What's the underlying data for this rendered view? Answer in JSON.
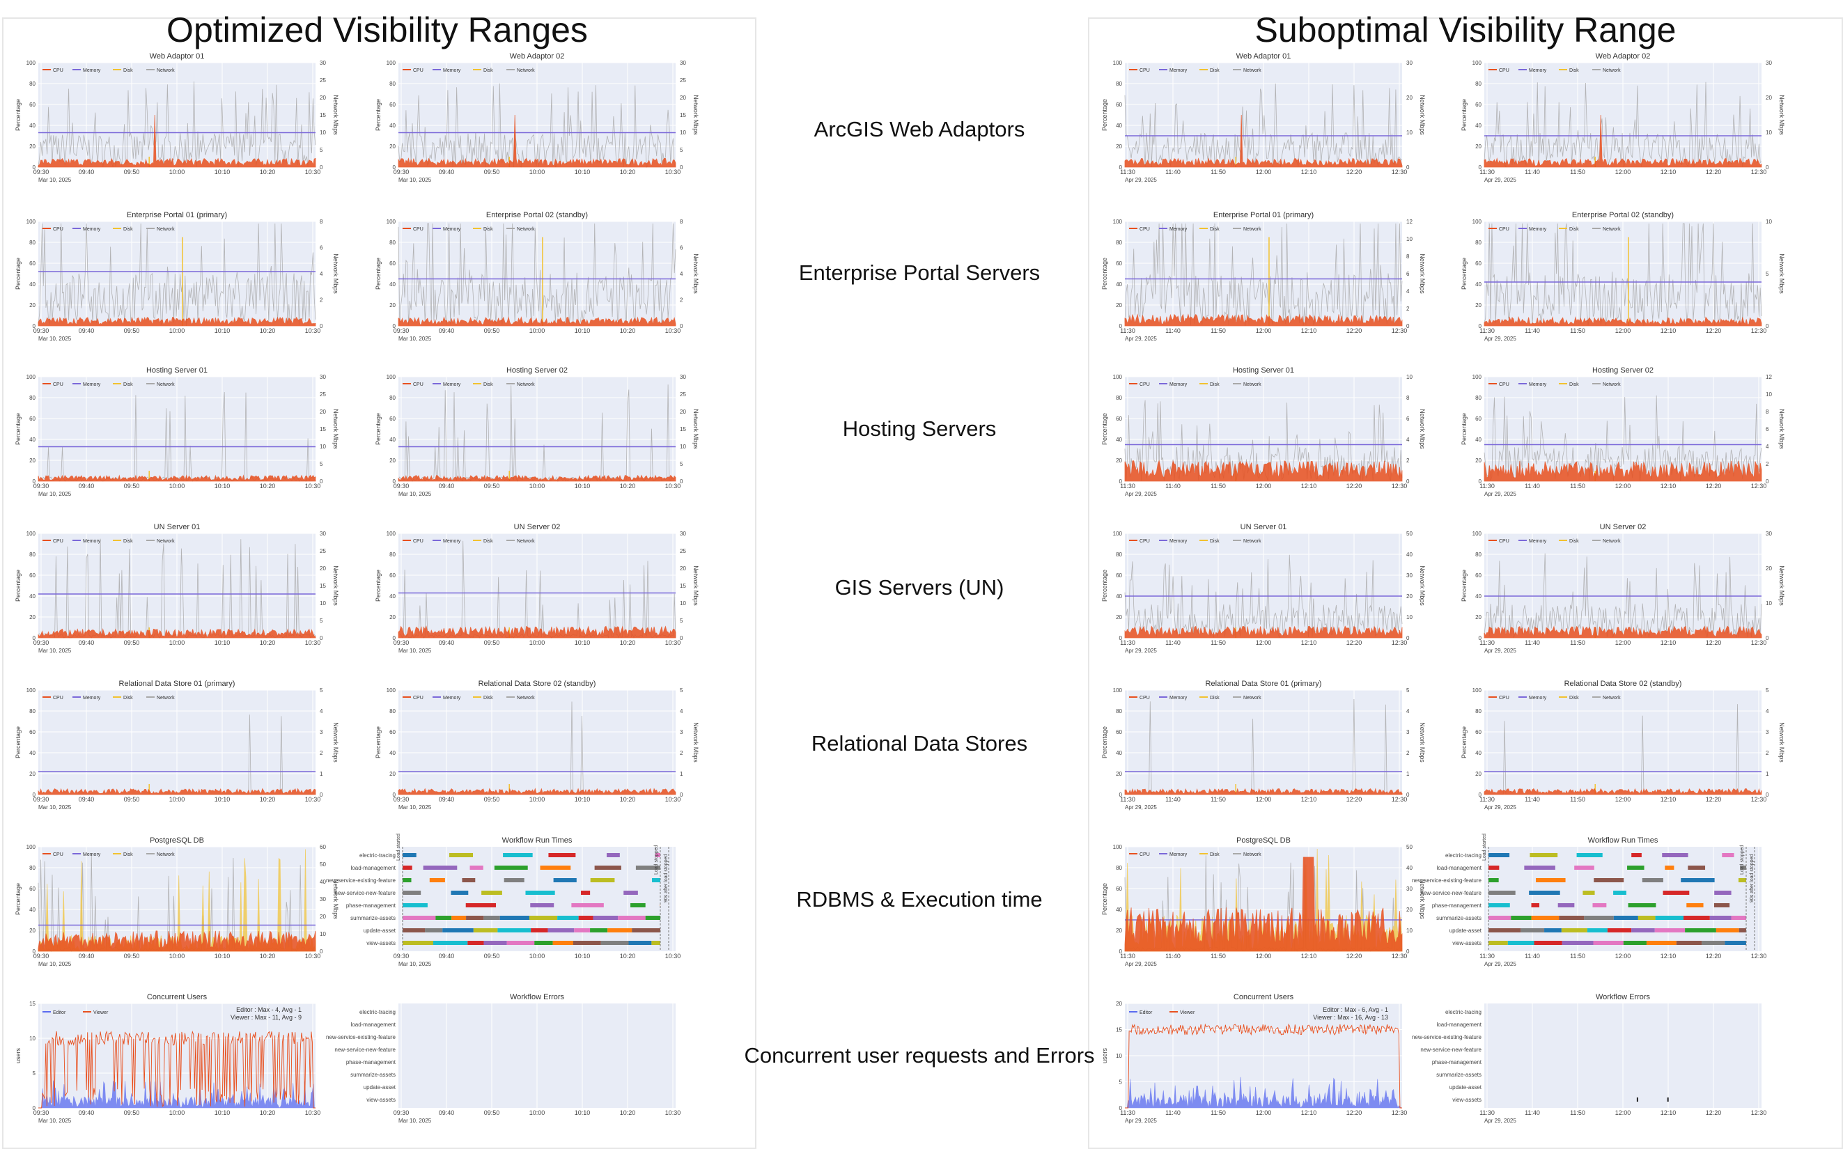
{
  "left_title": "Optimized Visibility Ranges",
  "right_title": "Suboptimal Visibility Range",
  "rows": [
    {
      "label": "ArcGIS Web Adaptors"
    },
    {
      "label": "Enterprise Portal Servers"
    },
    {
      "label": "Hosting Servers"
    },
    {
      "label": "GIS Servers (UN)"
    },
    {
      "label": "Relational Data Stores"
    },
    {
      "label": "RDBMS & Execution time"
    },
    {
      "label": "Concurrent user requests and Errors"
    }
  ],
  "legend_metrics": [
    "CPU",
    "Memory",
    "Disk",
    "Network"
  ],
  "legend_users": [
    "Editor",
    "Viewer"
  ],
  "colors": {
    "cpu": "#e8501f",
    "memory": "#7b68d9",
    "disk": "#f2c230",
    "network": "#a9a9a9",
    "editor": "#e8501f",
    "viewer": "#5a6bf0",
    "bg": "#e8ecf6"
  },
  "axis_labels": {
    "y_left": "Percentage",
    "y_right": "Network Mbps",
    "y_users": "users"
  },
  "workflows": [
    "electric-tracing",
    "load-management",
    "new-service-existing-feature",
    "new-service-new-feature",
    "phase-management",
    "summarize-assets",
    "update-asset",
    "view-assets"
  ],
  "workflow_markers": {
    "load_started": "Load started",
    "load_stopped": "Load stopped",
    "after_stopped": "90s after load stopped"
  },
  "chart_data": [
    {
      "id": "L-r0-c0",
      "type": "line",
      "title": "Web Adaptor 01",
      "xticks": [
        "09:30",
        "09:40",
        "09:50",
        "10:00",
        "10:10",
        "10:20",
        "10:30"
      ],
      "date": "Mar 10, 2025",
      "ylim": [
        0,
        100
      ],
      "yticks": [
        "0",
        "20",
        "40",
        "60",
        "80",
        "100"
      ],
      "y2ticks": [
        "0",
        "5",
        "10",
        "15",
        "20",
        "25",
        "30"
      ],
      "memory_level": 33,
      "cpu_level": 6
    },
    {
      "id": "L-r0-c1",
      "type": "line",
      "title": "Web Adaptor 02",
      "xticks": [
        "09:30",
        "09:40",
        "09:50",
        "10:00",
        "10:10",
        "10:20",
        "10:30"
      ],
      "date": "Mar 10, 2025",
      "ylim": [
        0,
        100
      ],
      "yticks": [
        "0",
        "20",
        "40",
        "60",
        "80",
        "100"
      ],
      "y2ticks": [
        "0",
        "5",
        "10",
        "15",
        "20",
        "25",
        "30"
      ],
      "memory_level": 33,
      "cpu_level": 6
    },
    {
      "id": "L-r1-c0",
      "type": "line",
      "title": "Enterprise Portal 01 (primary)",
      "xticks": [
        "09:30",
        "09:40",
        "09:50",
        "10:00",
        "10:10",
        "10:20",
        "10:30"
      ],
      "date": "Mar 10, 2025",
      "ylim": [
        0,
        100
      ],
      "yticks": [
        "0",
        "20",
        "40",
        "60",
        "80",
        "100"
      ],
      "y2ticks": [
        "0",
        "2",
        "4",
        "6",
        "8"
      ],
      "memory_level": 52,
      "cpu_level": 6
    },
    {
      "id": "L-r1-c1",
      "type": "line",
      "title": "Enterprise Portal 02 (standby)",
      "xticks": [
        "09:30",
        "09:40",
        "09:50",
        "10:00",
        "10:10",
        "10:20",
        "10:30"
      ],
      "date": "Mar 10, 2025",
      "ylim": [
        0,
        100
      ],
      "yticks": [
        "0",
        "20",
        "40",
        "60",
        "80",
        "100"
      ],
      "y2ticks": [
        "0",
        "2",
        "4",
        "6",
        "8"
      ],
      "memory_level": 45,
      "cpu_level": 6
    },
    {
      "id": "L-r2-c0",
      "type": "line",
      "title": "Hosting Server 01",
      "xticks": [
        "09:30",
        "09:40",
        "09:50",
        "10:00",
        "10:10",
        "10:20",
        "10:30"
      ],
      "date": "Mar 10, 2025",
      "ylim": [
        0,
        100
      ],
      "yticks": [
        "0",
        "20",
        "40",
        "60",
        "80",
        "100"
      ],
      "y2ticks": [
        "0",
        "5",
        "10",
        "15",
        "20",
        "25",
        "30"
      ],
      "memory_level": 33,
      "cpu_level": 4
    },
    {
      "id": "L-r2-c1",
      "type": "line",
      "title": "Hosting Server 02",
      "xticks": [
        "09:30",
        "09:40",
        "09:50",
        "10:00",
        "10:10",
        "10:20",
        "10:30"
      ],
      "date": "Mar 10, 2025",
      "ylim": [
        0,
        100
      ],
      "yticks": [
        "0",
        "20",
        "40",
        "60",
        "80",
        "100"
      ],
      "y2ticks": [
        "0",
        "5",
        "10",
        "15",
        "20",
        "25",
        "30"
      ],
      "memory_level": 33,
      "cpu_level": 4
    },
    {
      "id": "L-r3-c0",
      "type": "line",
      "title": "UN Server 01",
      "xticks": [
        "09:30",
        "09:40",
        "09:50",
        "10:00",
        "10:10",
        "10:20",
        "10:30"
      ],
      "date": "Mar 10, 2025",
      "ylim": [
        0,
        100
      ],
      "yticks": [
        "0",
        "20",
        "40",
        "60",
        "80",
        "100"
      ],
      "y2ticks": [
        "0",
        "5",
        "10",
        "15",
        "20",
        "25",
        "30"
      ],
      "memory_level": 42,
      "cpu_level": 6
    },
    {
      "id": "L-r3-c1",
      "type": "line",
      "title": "UN Server 02",
      "xticks": [
        "09:30",
        "09:40",
        "09:50",
        "10:00",
        "10:10",
        "10:20",
        "10:30"
      ],
      "date": "Mar 10, 2025",
      "ylim": [
        0,
        100
      ],
      "yticks": [
        "0",
        "20",
        "40",
        "60",
        "80",
        "100"
      ],
      "y2ticks": [
        "0",
        "5",
        "10",
        "15",
        "20",
        "25",
        "30"
      ],
      "memory_level": 43,
      "cpu_level": 8
    },
    {
      "id": "L-r4-c0",
      "type": "line",
      "title": "Relational Data Store 01 (primary)",
      "xticks": [
        "09:30",
        "09:40",
        "09:50",
        "10:00",
        "10:10",
        "10:20",
        "10:30"
      ],
      "date": "Mar 10, 2025",
      "ylim": [
        0,
        100
      ],
      "yticks": [
        "0",
        "20",
        "40",
        "60",
        "80",
        "100"
      ],
      "y2ticks": [
        "0",
        "1",
        "2",
        "3",
        "4",
        "5"
      ],
      "memory_level": 22,
      "cpu_level": 4
    },
    {
      "id": "L-r4-c1",
      "type": "line",
      "title": "Relational Data Store 02 (standby)",
      "xticks": [
        "09:30",
        "09:40",
        "09:50",
        "10:00",
        "10:10",
        "10:20",
        "10:30"
      ],
      "date": "Mar 10, 2025",
      "ylim": [
        0,
        100
      ],
      "yticks": [
        "0",
        "20",
        "40",
        "60",
        "80",
        "100"
      ],
      "y2ticks": [
        "0",
        "1",
        "2",
        "3",
        "4",
        "5"
      ],
      "memory_level": 22,
      "cpu_level": 4
    },
    {
      "id": "L-r5-c0",
      "type": "area",
      "title": "PostgreSQL DB",
      "xticks": [
        "09:30",
        "09:40",
        "09:50",
        "10:00",
        "10:10",
        "10:20",
        "10:30"
      ],
      "date": "Mar 10, 2025",
      "ylim": [
        0,
        100
      ],
      "yticks": [
        "0",
        "20",
        "40",
        "60",
        "80",
        "100"
      ],
      "y2ticks": [
        "0",
        "10",
        "20",
        "30",
        "40",
        "50",
        "60"
      ],
      "memory_level": 25,
      "cpu_level": 14
    },
    {
      "id": "L-r5-c1",
      "type": "gantt",
      "title": "Workflow Run Times",
      "xticks": [
        "09:30",
        "09:40",
        "09:50",
        "10:00",
        "10:10",
        "10:20",
        "10:30"
      ],
      "date": "Mar 10, 2025"
    },
    {
      "id": "L-r6-c0",
      "type": "line",
      "title": "Concurrent Users",
      "xticks": [
        "09:30",
        "09:40",
        "09:50",
        "10:00",
        "10:10",
        "10:20",
        "10:30"
      ],
      "date": "Mar 10, 2025",
      "ylim": [
        0,
        15
      ],
      "yticks": [
        "0",
        "5",
        "10",
        "15"
      ],
      "annotation": [
        "Editor : Max - 4, Avg - 1",
        "Viewer : Max - 11, Avg - 9"
      ],
      "editor": {
        "max": 4,
        "avg": 1
      },
      "viewer": {
        "max": 11,
        "avg": 9
      }
    },
    {
      "id": "L-r6-c1",
      "type": "gantt",
      "title": "Workflow Errors",
      "xticks": [
        "09:30",
        "09:40",
        "09:50",
        "10:00",
        "10:10",
        "10:20",
        "10:30"
      ],
      "date": "Mar 10, 2025"
    },
    {
      "id": "R-r0-c0",
      "type": "line",
      "title": "Web Adaptor 01",
      "xticks": [
        "11:30",
        "11:40",
        "11:50",
        "12:00",
        "12:10",
        "12:20",
        "12:30"
      ],
      "date": "Apr 29, 2025",
      "ylim": [
        0,
        100
      ],
      "yticks": [
        "0",
        "20",
        "40",
        "60",
        "80",
        "100"
      ],
      "y2ticks": [
        "0",
        "10",
        "20",
        "30"
      ],
      "memory_level": 30,
      "cpu_level": 6
    },
    {
      "id": "R-r0-c1",
      "type": "line",
      "title": "Web Adaptor 02",
      "xticks": [
        "11:30",
        "11:40",
        "11:50",
        "12:00",
        "12:10",
        "12:20",
        "12:30"
      ],
      "date": "Apr 29, 2025",
      "ylim": [
        0,
        100
      ],
      "yticks": [
        "0",
        "20",
        "40",
        "60",
        "80",
        "100"
      ],
      "y2ticks": [
        "0",
        "10",
        "20",
        "30"
      ],
      "memory_level": 30,
      "cpu_level": 6
    },
    {
      "id": "R-r1-c0",
      "type": "line",
      "title": "Enterprise Portal 01 (primary)",
      "xticks": [
        "11:30",
        "11:40",
        "11:50",
        "12:00",
        "12:10",
        "12:20",
        "12:30"
      ],
      "date": "Apr 29, 2025",
      "ylim": [
        0,
        100
      ],
      "yticks": [
        "0",
        "20",
        "40",
        "60",
        "80",
        "100"
      ],
      "y2ticks": [
        "0",
        "2",
        "4",
        "6",
        "8",
        "10",
        "12"
      ],
      "memory_level": 45,
      "cpu_level": 8
    },
    {
      "id": "R-r1-c1",
      "type": "line",
      "title": "Enterprise Portal 02 (standby)",
      "xticks": [
        "11:30",
        "11:40",
        "11:50",
        "12:00",
        "12:10",
        "12:20",
        "12:30"
      ],
      "date": "Apr 29, 2025",
      "ylim": [
        0,
        100
      ],
      "yticks": [
        "0",
        "20",
        "40",
        "60",
        "80",
        "100"
      ],
      "y2ticks": [
        "0",
        "5",
        "10"
      ],
      "memory_level": 42,
      "cpu_level": 6
    },
    {
      "id": "R-r2-c0",
      "type": "line",
      "title": "Hosting Server 01",
      "xticks": [
        "11:30",
        "11:40",
        "11:50",
        "12:00",
        "12:10",
        "12:20",
        "12:30"
      ],
      "date": "Apr 29, 2025",
      "ylim": [
        0,
        100
      ],
      "yticks": [
        "0",
        "20",
        "40",
        "60",
        "80",
        "100"
      ],
      "y2ticks": [
        "0",
        "2",
        "4",
        "6",
        "8",
        "10"
      ],
      "memory_level": 35,
      "cpu_level": 14
    },
    {
      "id": "R-r2-c1",
      "type": "line",
      "title": "Hosting Server 02",
      "xticks": [
        "11:30",
        "11:40",
        "11:50",
        "12:00",
        "12:10",
        "12:20",
        "12:30"
      ],
      "date": "Apr 29, 2025",
      "ylim": [
        0,
        100
      ],
      "yticks": [
        "0",
        "20",
        "40",
        "60",
        "80",
        "100"
      ],
      "y2ticks": [
        "0",
        "2",
        "4",
        "6",
        "8",
        "10",
        "12"
      ],
      "memory_level": 35,
      "cpu_level": 14
    },
    {
      "id": "R-r3-c0",
      "type": "line",
      "title": "UN Server 01",
      "xticks": [
        "11:30",
        "11:40",
        "11:50",
        "12:00",
        "12:10",
        "12:20",
        "12:30"
      ],
      "date": "Apr 29, 2025",
      "ylim": [
        0,
        100
      ],
      "yticks": [
        "0",
        "20",
        "40",
        "60",
        "80",
        "100"
      ],
      "y2ticks": [
        "0",
        "10",
        "20",
        "30",
        "40",
        "50"
      ],
      "memory_level": 40,
      "cpu_level": 8
    },
    {
      "id": "R-r3-c1",
      "type": "line",
      "title": "UN Server 02",
      "xticks": [
        "11:30",
        "11:40",
        "11:50",
        "12:00",
        "12:10",
        "12:20",
        "12:30"
      ],
      "date": "Apr 29, 2025",
      "ylim": [
        0,
        100
      ],
      "yticks": [
        "0",
        "20",
        "40",
        "60",
        "80",
        "100"
      ],
      "y2ticks": [
        "0",
        "10",
        "20",
        "30"
      ],
      "memory_level": 40,
      "cpu_level": 8
    },
    {
      "id": "R-r4-c0",
      "type": "line",
      "title": "Relational Data Store 01 (primary)",
      "xticks": [
        "11:30",
        "11:40",
        "11:50",
        "12:00",
        "12:10",
        "12:20",
        "12:30"
      ],
      "date": "Apr 29, 2025",
      "ylim": [
        0,
        100
      ],
      "yticks": [
        "0",
        "20",
        "40",
        "60",
        "80",
        "100"
      ],
      "y2ticks": [
        "0",
        "1",
        "2",
        "3",
        "4",
        "5"
      ],
      "memory_level": 22,
      "cpu_level": 4
    },
    {
      "id": "R-r4-c1",
      "type": "line",
      "title": "Relational Data Store 02 (standby)",
      "xticks": [
        "11:30",
        "11:40",
        "11:50",
        "12:00",
        "12:10",
        "12:20",
        "12:30"
      ],
      "date": "Apr 29, 2025",
      "ylim": [
        0,
        100
      ],
      "yticks": [
        "0",
        "20",
        "40",
        "60",
        "80",
        "100"
      ],
      "y2ticks": [
        "0",
        "1",
        "2",
        "3",
        "4",
        "5"
      ],
      "memory_level": 22,
      "cpu_level": 4
    },
    {
      "id": "R-r5-c0",
      "type": "area",
      "title": "PostgreSQL DB",
      "xticks": [
        "11:30",
        "11:40",
        "11:50",
        "12:00",
        "12:10",
        "12:20",
        "12:30"
      ],
      "date": "Apr 29, 2025",
      "ylim": [
        0,
        100
      ],
      "yticks": [
        "0",
        "20",
        "40",
        "60",
        "80",
        "100"
      ],
      "y2ticks": [
        "0",
        "10",
        "20",
        "30",
        "40",
        "50"
      ],
      "memory_level": 30,
      "cpu_level": 30
    },
    {
      "id": "R-r5-c1",
      "type": "gantt",
      "title": "Workflow Run Times",
      "xticks": [
        "11:30",
        "11:40",
        "11:50",
        "12:00",
        "12:10",
        "12:20",
        "12:30"
      ],
      "date": "Apr 29, 2025"
    },
    {
      "id": "R-r6-c0",
      "type": "line",
      "title": "Concurrent Users",
      "xticks": [
        "11:30",
        "11:40",
        "11:50",
        "12:00",
        "12:10",
        "12:20",
        "12:30"
      ],
      "date": "Apr 29, 2025",
      "ylim": [
        0,
        20
      ],
      "yticks": [
        "0",
        "5",
        "10",
        "15",
        "20"
      ],
      "annotation": [
        "Editor : Max - 6, Avg - 1",
        "Viewer : Max - 16, Avg - 13"
      ],
      "editor": {
        "max": 6,
        "avg": 1
      },
      "viewer": {
        "max": 16,
        "avg": 13
      }
    },
    {
      "id": "R-r6-c1",
      "type": "gantt",
      "title": "Workflow Errors",
      "xticks": [
        "11:30",
        "11:40",
        "11:50",
        "12:00",
        "12:10",
        "12:20",
        "12:30"
      ],
      "date": "Apr 29, 2025"
    }
  ]
}
